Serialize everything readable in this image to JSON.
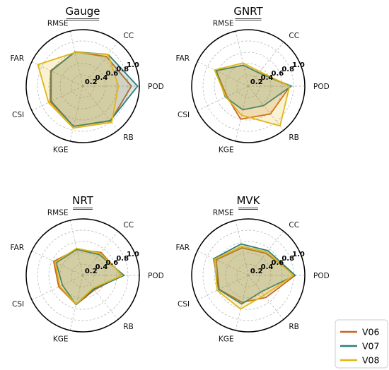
{
  "chart_data": {
    "type": "radar",
    "axes": [
      "POD",
      "RB",
      "KGE",
      "CSI",
      "FAR",
      "RMSE",
      "CC"
    ],
    "radial_ticks": [
      "0.2",
      "0.4",
      "0.6",
      "0.8",
      "1.0"
    ],
    "rlim": [
      0,
      1
    ],
    "grid": true,
    "legend_position": "bottom-right",
    "legend": [
      {
        "label": "V06",
        "color": "#c8671e"
      },
      {
        "label": "V07",
        "color": "#2e7d7a"
      },
      {
        "label": "V08",
        "color": "#e1b612"
      }
    ],
    "panels": [
      {
        "title": "Gauge",
        "series": [
          {
            "name": "V06",
            "values": [
              0.86,
              0.79,
              0.73,
              0.64,
              0.63,
              0.62,
              0.67
            ]
          },
          {
            "name": "V07",
            "values": [
              0.97,
              0.78,
              0.73,
              0.62,
              0.62,
              0.62,
              0.72
            ]
          },
          {
            "name": "V08",
            "values": [
              0.63,
              0.82,
              0.76,
              0.67,
              0.88,
              0.61,
              0.72
            ]
          }
        ]
      },
      {
        "title": "GNRT",
        "series": [
          {
            "name": "V06",
            "values": [
              0.74,
              0.63,
              0.6,
              0.42,
              0.63,
              0.38,
              0.3
            ]
          },
          {
            "name": "V07",
            "values": [
              0.76,
              0.44,
              0.43,
              0.45,
              0.63,
              0.38,
              0.3
            ]
          },
          {
            "name": "V08",
            "values": [
              0.73,
              0.9,
              0.53,
              0.44,
              0.66,
              0.42,
              0.33
            ]
          }
        ]
      },
      {
        "title": "NRT",
        "series": [
          {
            "name": "V06",
            "values": [
              0.69,
              0.33,
              0.53,
              0.47,
              0.57,
              0.47,
              0.52
            ]
          },
          {
            "name": "V07",
            "values": [
              0.73,
              0.31,
              0.53,
              0.4,
              0.52,
              0.47,
              0.47
            ]
          },
          {
            "name": "V08",
            "values": [
              0.7,
              0.29,
              0.52,
              0.45,
              0.54,
              0.49,
              0.5
            ]
          }
        ]
      },
      {
        "title": "MVK",
        "series": [
          {
            "name": "V06",
            "values": [
              0.83,
              0.5,
              0.49,
              0.57,
              0.63,
              0.5,
              0.5
            ]
          },
          {
            "name": "V07",
            "values": [
              0.83,
              0.37,
              0.52,
              0.58,
              0.68,
              0.57,
              0.56
            ]
          },
          {
            "name": "V08",
            "values": [
              0.8,
              0.45,
              0.61,
              0.61,
              0.66,
              0.53,
              0.53
            ]
          }
        ]
      }
    ]
  }
}
